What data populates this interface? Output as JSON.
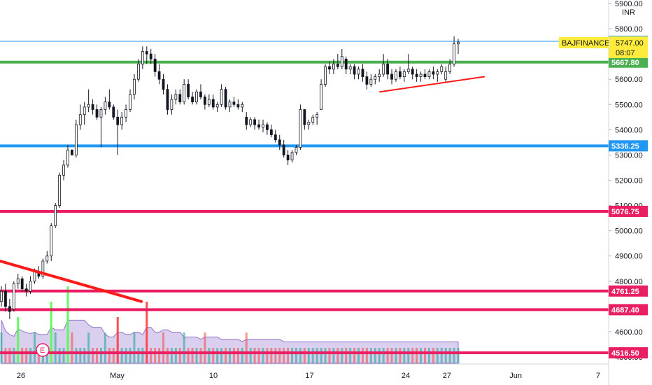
{
  "chart_data": {
    "type": "candlestick",
    "symbol": "BAJFINANCE",
    "currency": "INR",
    "last_price": "5747.00",
    "countdown": "08:07",
    "y_axis": {
      "ticks": [
        "5900.00",
        "5800.00",
        "5700.00",
        "5600.00",
        "5500.00",
        "5400.00",
        "5300.00",
        "5200.00",
        "5100.00",
        "5000.00",
        "4900.00",
        "4800.00",
        "4700.00",
        "4600.00",
        "4500.00"
      ],
      "ylim": [
        4490,
        5910
      ],
      "scale": "linear"
    },
    "x_axis": {
      "ticks": [
        {
          "label": "26",
          "date": "2021-04-26"
        },
        {
          "label": "May",
          "date": "2021-05-03"
        },
        {
          "label": "10",
          "date": "2021-05-10"
        },
        {
          "label": "17",
          "date": "2021-05-17"
        },
        {
          "label": "24",
          "date": "2021-05-24"
        },
        {
          "label": "27",
          "date": "2021-05-27"
        },
        {
          "label": "Jun",
          "date": "2021-06-01"
        },
        {
          "label": "7",
          "date": "2021-06-07"
        }
      ]
    },
    "levels": [
      {
        "label": "5750.25",
        "value": 5750.25,
        "color": "#2196f3",
        "width": 1
      },
      {
        "label": "5667.80",
        "value": 5667.8,
        "color": "#4caf50",
        "width": 4
      },
      {
        "label": "5336.25",
        "value": 5336.25,
        "color": "#2196f3",
        "width": 4
      },
      {
        "label": "5076.75",
        "value": 5076.75,
        "color": "#e91e63",
        "width": 4
      },
      {
        "label": "4761.25",
        "value": 4761.25,
        "color": "#e91e63",
        "width": 4
      },
      {
        "label": "4687.40",
        "value": 4687.4,
        "color": "#e91e63",
        "width": 4
      },
      {
        "label": "4516.50",
        "value": 4516.5,
        "color": "#e91e63",
        "width": 4
      }
    ],
    "trendlines": [
      {
        "color": "#ff1a1a",
        "width": 4,
        "from": {
          "date": "2021-04-21",
          "price": 4880
        },
        "to": {
          "date": "2021-05-02",
          "price": 4720
        }
      },
      {
        "color": "#ff1a1a",
        "width": 2,
        "from": {
          "date": "2021-05-21",
          "price": 5550
        },
        "to": {
          "date": "2021-05-28",
          "price": 5610
        }
      }
    ],
    "series": [
      {
        "values": [
          [
            4720,
            4780,
            4700,
            4760
          ],
          [
            4760,
            4790,
            4680,
            4700
          ],
          [
            4700,
            4730,
            4650,
            4680
          ],
          [
            4690,
            4800,
            4680,
            4790
          ],
          [
            4790,
            4830,
            4770,
            4810
          ],
          [
            4810,
            4820,
            4760,
            4770
          ],
          [
            4770,
            4790,
            4740,
            4760
          ],
          [
            4760,
            4820,
            4750,
            4800
          ],
          [
            4800,
            4850,
            4790,
            4840
          ],
          [
            4840,
            4860,
            4810,
            4820
          ],
          [
            4820,
            4890,
            4810,
            4880
          ],
          [
            4880,
            4920,
            4870,
            4900
          ],
          [
            4900,
            5030,
            4880,
            5020
          ],
          [
            5020,
            5110,
            5010,
            5100
          ],
          [
            5100,
            5230,
            5090,
            5220
          ],
          [
            5220,
            5280,
            5200,
            5260
          ],
          [
            5260,
            5340,
            5250,
            5320
          ],
          [
            5320,
            5310,
            5300,
            5300
          ],
          [
            5300,
            5440,
            5290,
            5420
          ],
          [
            5420,
            5500,
            5400,
            5460
          ],
          [
            5460,
            5510,
            5420,
            5490
          ],
          [
            5490,
            5560,
            5470,
            5500
          ],
          [
            5500,
            5520,
            5460,
            5480
          ],
          [
            5480,
            5500,
            5440,
            5450
          ],
          [
            5450,
            5490,
            5330,
            5480
          ],
          [
            5480,
            5530,
            5460,
            5510
          ],
          [
            5510,
            5560,
            5480,
            5490
          ],
          [
            5490,
            5500,
            5440,
            5450
          ],
          [
            5450,
            5480,
            5300,
            5420
          ],
          [
            5420,
            5470,
            5400,
            5450
          ],
          [
            5450,
            5500,
            5430,
            5480
          ],
          [
            5480,
            5560,
            5470,
            5540
          ],
          [
            5540,
            5620,
            5520,
            5600
          ],
          [
            5600,
            5680,
            5590,
            5660
          ],
          [
            5660,
            5730,
            5640,
            5710
          ],
          [
            5710,
            5730,
            5660,
            5700
          ],
          [
            5700,
            5720,
            5660,
            5680
          ],
          [
            5680,
            5700,
            5610,
            5630
          ],
          [
            5630,
            5660,
            5580,
            5600
          ],
          [
            5600,
            5620,
            5540,
            5560
          ],
          [
            5560,
            5580,
            5460,
            5480
          ],
          [
            5480,
            5540,
            5460,
            5520
          ],
          [
            5520,
            5560,
            5500,
            5540
          ],
          [
            5540,
            5560,
            5500,
            5510
          ],
          [
            5510,
            5600,
            5500,
            5580
          ],
          [
            5580,
            5600,
            5520,
            5530
          ],
          [
            5530,
            5550,
            5500,
            5510
          ],
          [
            5510,
            5560,
            5500,
            5550
          ],
          [
            5550,
            5580,
            5520,
            5530
          ],
          [
            5530,
            5540,
            5480,
            5500
          ],
          [
            5500,
            5540,
            5490,
            5520
          ],
          [
            5520,
            5540,
            5480,
            5490
          ],
          [
            5490,
            5510,
            5470,
            5500
          ],
          [
            5500,
            5580,
            5490,
            5560
          ],
          [
            5560,
            5570,
            5480,
            5490
          ],
          [
            5490,
            5520,
            5470,
            5510
          ],
          [
            5510,
            5530,
            5490,
            5500
          ],
          [
            5500,
            5520,
            5480,
            5490
          ],
          [
            5490,
            5510,
            5470,
            5500
          ],
          [
            5450,
            5470,
            5400,
            5420
          ],
          [
            5420,
            5450,
            5410,
            5440
          ],
          [
            5440,
            5450,
            5400,
            5420
          ],
          [
            5420,
            5440,
            5400,
            5410
          ],
          [
            5410,
            5440,
            5390,
            5420
          ],
          [
            5420,
            5430,
            5380,
            5400
          ],
          [
            5400,
            5420,
            5370,
            5380
          ],
          [
            5380,
            5400,
            5350,
            5360
          ],
          [
            5360,
            5380,
            5320,
            5340
          ],
          [
            5340,
            5360,
            5290,
            5300
          ],
          [
            5300,
            5320,
            5260,
            5280
          ],
          [
            5280,
            5320,
            5270,
            5310
          ],
          [
            5310,
            5340,
            5300,
            5330
          ],
          [
            5330,
            5500,
            5320,
            5480
          ],
          [
            5480,
            5460,
            5400,
            5420
          ],
          [
            5420,
            5440,
            5400,
            5430
          ],
          [
            5430,
            5460,
            5420,
            5450
          ],
          [
            5450,
            5470,
            5420,
            5460
          ],
          [
            5480,
            5600,
            5520,
            5580
          ],
          [
            5580,
            5660,
            5570,
            5650
          ],
          [
            5650,
            5670,
            5620,
            5640
          ],
          [
            5640,
            5680,
            5620,
            5660
          ],
          [
            5660,
            5700,
            5640,
            5650
          ],
          [
            5650,
            5720,
            5640,
            5690
          ],
          [
            5680,
            5690,
            5620,
            5640
          ],
          [
            5640,
            5660,
            5620,
            5650
          ],
          [
            5650,
            5660,
            5600,
            5620
          ],
          [
            5620,
            5650,
            5600,
            5640
          ],
          [
            5640,
            5660,
            5590,
            5610
          ],
          [
            5610,
            5630,
            5560,
            5580
          ],
          [
            5580,
            5620,
            5570,
            5600
          ],
          [
            5600,
            5620,
            5580,
            5610
          ],
          [
            5610,
            5640,
            5590,
            5620
          ],
          [
            5620,
            5700,
            5610,
            5660
          ],
          [
            5660,
            5680,
            5600,
            5620
          ],
          [
            5620,
            5640,
            5580,
            5600
          ],
          [
            5600,
            5640,
            5590,
            5630
          ],
          [
            5630,
            5650,
            5600,
            5610
          ],
          [
            5610,
            5640,
            5590,
            5630
          ],
          [
            5630,
            5700,
            5620,
            5640
          ],
          [
            5640,
            5650,
            5600,
            5620
          ],
          [
            5620,
            5640,
            5590,
            5610
          ],
          [
            5610,
            5630,
            5590,
            5620
          ],
          [
            5620,
            5640,
            5600,
            5610
          ],
          [
            5610,
            5640,
            5600,
            5630
          ],
          [
            5630,
            5650,
            5600,
            5620
          ],
          [
            5620,
            5640,
            5590,
            5630
          ],
          [
            5630,
            5660,
            5620,
            5650
          ],
          [
            5600,
            5650,
            5590,
            5630
          ],
          [
            5630,
            5680,
            5620,
            5660
          ],
          [
            5660,
            5770,
            5650,
            5740
          ],
          [
            5740,
            5760,
            5700,
            5747
          ]
        ]
      }
    ],
    "volume": {
      "colors": {
        "up": "#26a69a80",
        "down": "#ef535080",
        "up_strong": "#4cff4c",
        "down_strong": "#ff3b3b",
        "ma": "#9575cd"
      },
      "values": [
        2,
        1,
        1,
        1,
        3,
        1,
        1,
        1,
        2,
        1,
        1,
        1,
        4,
        2,
        1,
        1,
        5,
        2,
        1,
        1,
        1,
        2,
        1,
        1,
        1,
        2,
        1,
        1,
        3,
        1,
        1,
        1,
        2,
        1,
        1,
        4,
        1,
        1,
        1,
        2,
        1,
        1,
        1,
        1,
        2,
        1,
        1,
        1,
        1,
        2,
        1,
        1,
        1,
        1,
        1,
        1,
        1,
        1,
        1,
        2,
        1,
        1,
        1,
        1,
        1,
        1,
        1,
        1,
        1,
        1,
        1,
        1,
        1,
        1,
        1,
        1,
        1,
        1,
        1,
        1,
        1,
        1,
        1,
        1,
        1,
        1,
        1,
        1,
        1,
        1,
        1,
        1,
        1,
        1,
        1,
        1,
        1,
        1,
        1,
        1,
        1,
        1,
        1,
        1,
        1,
        1,
        1,
        1,
        1,
        1,
        1
      ]
    },
    "event_marker": "E"
  }
}
